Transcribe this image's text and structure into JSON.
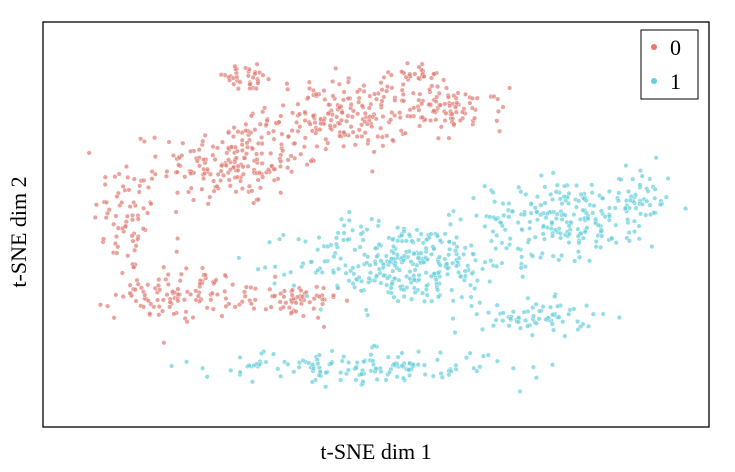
{
  "chart_data": {
    "type": "scatter",
    "xlabel": "t-SNE dim 1",
    "ylabel": "t-SNE dim 2",
    "xlim": [
      0,
      100
    ],
    "ylim": [
      0,
      100
    ],
    "grid": false,
    "axis_ticks": false,
    "legend_position": "top-right",
    "point_opacity": 0.7,
    "series": [
      {
        "name": "0",
        "color": "#e07b72",
        "clusters": [
          {
            "center": [
              12,
              52
            ],
            "spread": [
              5,
              14
            ],
            "count": 70
          },
          {
            "center": [
              28,
              66
            ],
            "spread": [
              10,
              10
            ],
            "count": 180
          },
          {
            "center": [
              45,
              78
            ],
            "spread": [
              10,
              9
            ],
            "count": 190
          },
          {
            "center": [
              62,
              80
            ],
            "spread": [
              8,
              5
            ],
            "count": 90
          },
          {
            "center": [
              20,
              32
            ],
            "spread": [
              9,
              6
            ],
            "count": 110
          },
          {
            "center": [
              38,
              30
            ],
            "spread": [
              6,
              4
            ],
            "count": 60
          },
          {
            "center": [
              30,
              88
            ],
            "spread": [
              5,
              3
            ],
            "count": 35
          },
          {
            "center": [
              57,
              89
            ],
            "spread": [
              4,
              3
            ],
            "count": 30
          }
        ]
      },
      {
        "name": "1",
        "color": "#66cfdc",
        "clusters": [
          {
            "center": [
              55,
              40
            ],
            "spread": [
              15,
              10
            ],
            "count": 320
          },
          {
            "center": [
              80,
              52
            ],
            "spread": [
              11,
              9
            ],
            "count": 200
          },
          {
            "center": [
              92,
              56
            ],
            "spread": [
              4,
              8
            ],
            "count": 50
          },
          {
            "center": [
              48,
              13
            ],
            "spread": [
              22,
              4
            ],
            "count": 150
          },
          {
            "center": [
              76,
              26
            ],
            "spread": [
              8,
              4
            ],
            "count": 70
          }
        ]
      }
    ]
  }
}
